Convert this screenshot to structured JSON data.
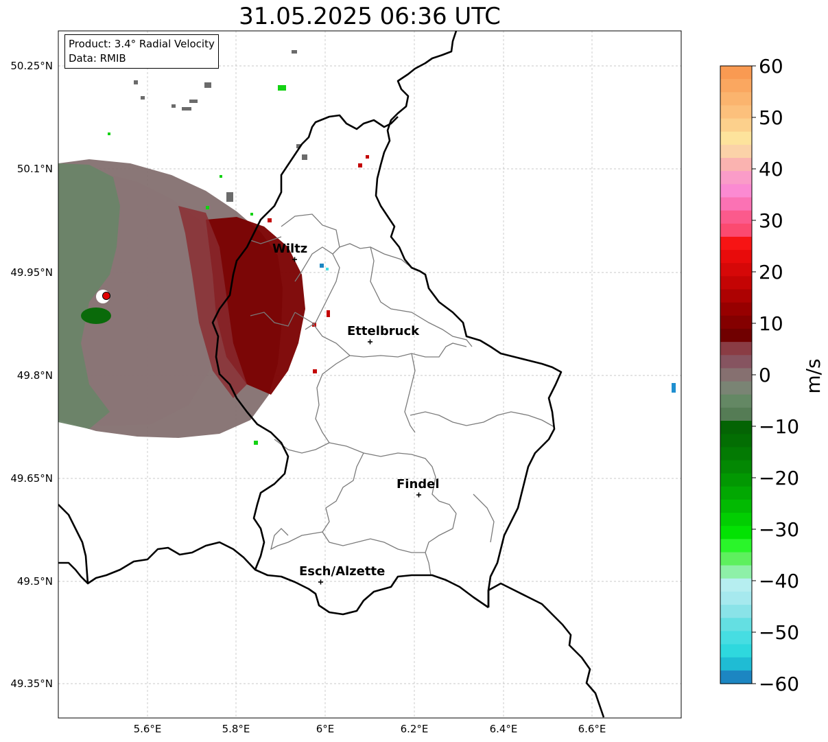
{
  "title": "31.05.2025 06:36 UTC",
  "info": {
    "product": "Product: 3.4° Radial Velocity",
    "data": "Data: RMIB"
  },
  "axes": {
    "lat_labels": [
      "50.25°N",
      "50.1°N",
      "49.95°N",
      "49.8°N",
      "49.65°N",
      "49.5°N",
      "49.35°N"
    ],
    "lon_labels": [
      "5.6°E",
      "5.8°E",
      "6°E",
      "6.2°E",
      "6.4°E",
      "6.6°E"
    ]
  },
  "cities": [
    {
      "name": "Wiltz"
    },
    {
      "name": "Ettelbruck"
    },
    {
      "name": "Findel"
    },
    {
      "name": "Esch/Alzette"
    }
  ],
  "colorbar": {
    "unit": "m/s",
    "ticks": [
      "60",
      "50",
      "40",
      "30",
      "20",
      "10",
      "0",
      "−10",
      "−20",
      "−30",
      "−40",
      "−50",
      "−60"
    ],
    "colors": [
      "#f99a52",
      "#faa760",
      "#fbb46e",
      "#fcc07c",
      "#fcd08c",
      "#fde39c",
      "#fbd2a8",
      "#fab3b0",
      "#fa9cc8",
      "#fb8ad2",
      "#fb72b4",
      "#fb5a8c",
      "#fb4a70",
      "#f71414",
      "#e80b0b",
      "#d60808",
      "#c40404",
      "#ad0202",
      "#970000",
      "#840000",
      "#700000",
      "#8a3c44",
      "#865460",
      "#867070",
      "#7a8474",
      "#648864",
      "#557c55",
      "#046404",
      "#036e03",
      "#037a03",
      "#038803",
      "#029802",
      "#02a802",
      "#02ba02",
      "#02ce02",
      "#03e203",
      "#2af52a",
      "#5ef05e",
      "#8ef0a8",
      "#b6eef0",
      "#a6e9ee",
      "#8ae3e8",
      "#64dfe2",
      "#46dde2",
      "#2ed8de",
      "#1fbcd4",
      "#1c86c2"
    ],
    "range": [
      -60,
      60
    ]
  },
  "radar_site": {
    "color": "#e00000"
  }
}
